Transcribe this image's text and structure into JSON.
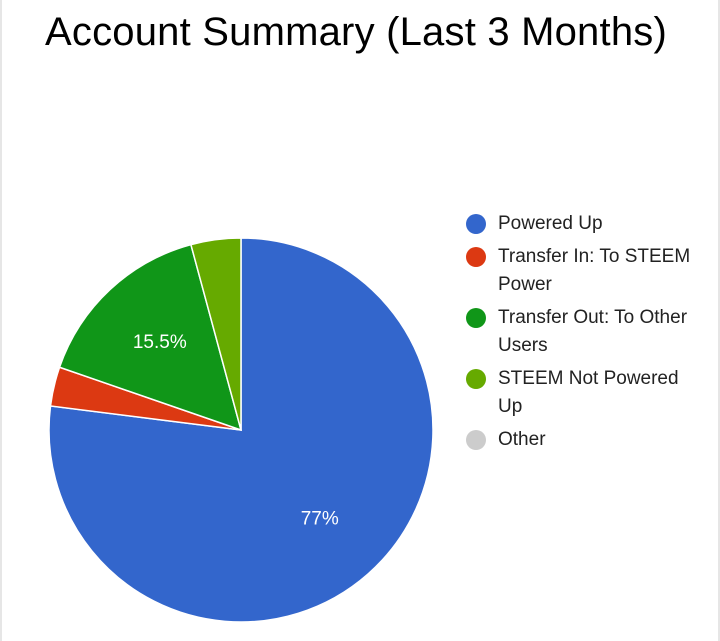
{
  "chart_data": {
    "type": "pie",
    "title": "Account Summary (Last 3 Months)",
    "slices": [
      {
        "label": "Powered Up",
        "value": 77.0,
        "color": "#3366cc",
        "data_label": "77%"
      },
      {
        "label": "Transfer In: To STEEM Power",
        "value": 3.3,
        "color": "#dc3912",
        "data_label": ""
      },
      {
        "label": "Transfer Out: To Other Users",
        "value": 15.5,
        "color": "#109618",
        "data_label": "15.5%"
      },
      {
        "label": "STEEM Not Powered Up",
        "value": 4.2,
        "color": "#66aa00",
        "data_label": ""
      },
      {
        "label": "Other",
        "value": 0,
        "color": "#cccccc",
        "data_label": ""
      }
    ],
    "legend_position": "right"
  }
}
